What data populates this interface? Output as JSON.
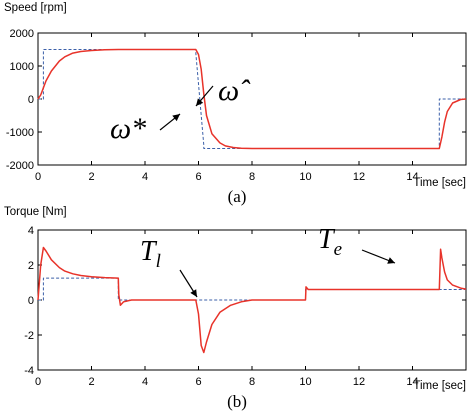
{
  "colors": {
    "measured": "#e8332a",
    "reference": "#3b5fa8",
    "axis": "#000000"
  },
  "chart_data": [
    {
      "type": "line",
      "panel_label": "(a)",
      "ylabel": "Speed [rpm]",
      "xlabel": "Time [sec]",
      "xlim": [
        0,
        16
      ],
      "ylim": [
        -2000,
        2000
      ],
      "x_ticks": [
        0,
        2,
        4,
        6,
        8,
        10,
        12,
        14
      ],
      "y_ticks": [
        -2000,
        -1000,
        0,
        1000,
        2000
      ],
      "grid": false,
      "annotations": [
        {
          "label": "ω*",
          "points_to": "reference"
        },
        {
          "label": "ω̂",
          "points_to": "measured"
        }
      ],
      "series": [
        {
          "role": "reference",
          "style": "dashed",
          "x": [
            0,
            0.2,
            0.2,
            5.9,
            5.9,
            6.2,
            6.2,
            15.0,
            15.0,
            16
          ],
          "y": [
            0,
            0,
            1500,
            1500,
            1400,
            -1400,
            -1500,
            -1500,
            0,
            0
          ]
        },
        {
          "role": "measured",
          "style": "solid",
          "x": [
            0,
            0.1,
            0.3,
            0.5,
            0.8,
            1.0,
            1.3,
            1.6,
            2.0,
            2.5,
            3.0,
            4.0,
            5.0,
            5.9,
            6.0,
            6.1,
            6.2,
            6.3,
            6.5,
            6.8,
            7.0,
            7.3,
            7.6,
            8.0,
            9.0,
            10.0,
            12.0,
            14.0,
            15.0,
            15.1,
            15.2,
            15.3,
            15.5,
            15.8,
            16.0
          ],
          "y": [
            0,
            120,
            550,
            850,
            1150,
            1280,
            1390,
            1440,
            1470,
            1490,
            1500,
            1500,
            1500,
            1500,
            1350,
            900,
            150,
            -500,
            -1050,
            -1330,
            -1420,
            -1470,
            -1490,
            -1500,
            -1500,
            -1500,
            -1500,
            -1500,
            -1500,
            -1150,
            -700,
            -380,
            -120,
            -15,
            0
          ]
        }
      ]
    },
    {
      "type": "line",
      "panel_label": "(b)",
      "ylabel": "Torque [Nm]",
      "xlabel": "Time [sec]",
      "xlim": [
        0,
        16
      ],
      "ylim": [
        -4,
        4
      ],
      "x_ticks": [
        0,
        2,
        4,
        6,
        8,
        10,
        12,
        14
      ],
      "y_ticks": [
        -4,
        -2,
        0,
        2,
        4
      ],
      "grid": false,
      "annotations": [
        {
          "label": "T_l",
          "points_to": "reference"
        },
        {
          "label": "T_e",
          "points_to": "measured"
        }
      ],
      "series": [
        {
          "role": "reference",
          "style": "dashed",
          "x": [
            0,
            0.2,
            0.2,
            3.0,
            3.0,
            10.0,
            10.0,
            16
          ],
          "y": [
            0,
            0,
            1.25,
            1.25,
            0,
            0,
            0.6,
            0.6
          ]
        },
        {
          "role": "measured",
          "style": "solid",
          "x": [
            0,
            0.1,
            0.2,
            0.3,
            0.5,
            0.8,
            1.0,
            1.3,
            1.6,
            2.0,
            2.5,
            3.0,
            3.02,
            3.08,
            3.2,
            3.5,
            4.0,
            5.0,
            5.9,
            6.0,
            6.1,
            6.2,
            6.3,
            6.5,
            6.8,
            7.2,
            7.6,
            8.0,
            9.0,
            10.0,
            10.02,
            10.1,
            10.3,
            11.0,
            12.0,
            14.0,
            15.0,
            15.05,
            15.1,
            15.2,
            15.3,
            15.5,
            15.8,
            16.0
          ],
          "y": [
            0,
            2.0,
            3.0,
            2.8,
            2.3,
            1.85,
            1.65,
            1.5,
            1.4,
            1.33,
            1.28,
            1.25,
            0.3,
            -0.3,
            -0.1,
            0,
            0,
            0,
            0,
            -0.8,
            -2.6,
            -3.0,
            -2.4,
            -1.4,
            -0.7,
            -0.3,
            -0.1,
            0,
            0,
            0,
            0.75,
            0.6,
            0.6,
            0.6,
            0.6,
            0.6,
            0.6,
            2.9,
            2.4,
            1.6,
            1.15,
            0.85,
            0.68,
            0.62
          ]
        }
      ]
    }
  ]
}
